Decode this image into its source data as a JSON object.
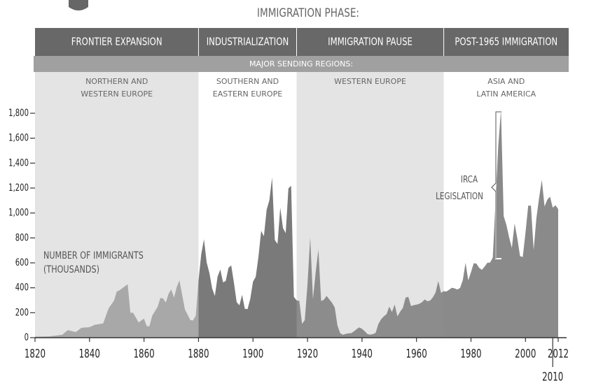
{
  "chart_data": {
    "type": "area",
    "title": "IMMIGRATION PHASE:",
    "subtitle": "MAJOR SENDING REGIONS:",
    "y_label": [
      "NUMBER OF IMMIGRANTS",
      "(THOUSANDS)"
    ],
    "annotation": [
      "IRCA",
      "LEGISLATION"
    ],
    "phases": [
      {
        "name": "FRONTIER EXPANSION",
        "region": [
          "NORTHERN AND",
          "WESTERN EUROPE"
        ],
        "start": 1820,
        "end": 1880,
        "bg": "#e4e4e4",
        "color": "#a8a8a8"
      },
      {
        "name": "INDUSTRIALIZATION",
        "region": [
          "SOUTHERN AND",
          "EASTERN EUROPE"
        ],
        "start": 1880,
        "end": 1916,
        "bg": "#ffffff",
        "color": "#7a7a7a"
      },
      {
        "name": "IMMIGRATION PAUSE",
        "region": [
          "WESTERN EUROPE"
        ],
        "start": 1916,
        "end": 1970,
        "bg": "#e4e4e4",
        "color": "#8c8c8c"
      },
      {
        "name": "POST-1965 IMMIGRATION",
        "region": [
          "ASIA AND",
          "LATIN AMERICA"
        ],
        "start": 1970,
        "end": 2016,
        "bg": "#ffffff",
        "color": "#8a8a8a"
      }
    ],
    "x": [
      1820,
      1825,
      1830,
      1832,
      1835,
      1837,
      1840,
      1842,
      1845,
      1847,
      1849,
      1850,
      1851,
      1854,
      1855,
      1856,
      1858,
      1860,
      1861,
      1862,
      1863,
      1865,
      1866,
      1867,
      1868,
      1869,
      1870,
      1871,
      1872,
      1873,
      1875,
      1877,
      1878,
      1879,
      1880,
      1881,
      1882,
      1883,
      1884,
      1885,
      1886,
      1887,
      1888,
      1889,
      1890,
      1891,
      1892,
      1893,
      1894,
      1895,
      1896,
      1897,
      1898,
      1899,
      1900,
      1901,
      1902,
      1903,
      1904,
      1905,
      1906,
      1907,
      1908,
      1909,
      1910,
      1911,
      1912,
      1913,
      1914,
      1915,
      1916,
      1917,
      1918,
      1919,
      1920,
      1921,
      1922,
      1923,
      1924,
      1925,
      1926,
      1927,
      1928,
      1929,
      1930,
      1931,
      1932,
      1933,
      1934,
      1935,
      1936,
      1937,
      1938,
      1939,
      1940,
      1941,
      1942,
      1943,
      1944,
      1945,
      1946,
      1947,
      1948,
      1949,
      1950,
      1951,
      1952,
      1953,
      1954,
      1955,
      1956,
      1957,
      1958,
      1959,
      1960,
      1961,
      1962,
      1963,
      1964,
      1965,
      1966,
      1967,
      1968,
      1969,
      1970,
      1971,
      1972,
      1973,
      1974,
      1975,
      1976,
      1977,
      1978,
      1979,
      1980,
      1981,
      1982,
      1983,
      1984,
      1985,
      1986,
      1987,
      1988,
      1989,
      1990,
      1991,
      1992,
      1993,
      1994,
      1995,
      1996,
      1997,
      1998,
      1999,
      2000,
      2001,
      2002,
      2003,
      2004,
      2005,
      2006,
      2007,
      2008,
      2009,
      2010,
      2011,
      2012
    ],
    "values": [
      8,
      10,
      23,
      60,
      45,
      79,
      84,
      104,
      114,
      235,
      297,
      370,
      380,
      428,
      200,
      200,
      123,
      153,
      92,
      92,
      176,
      248,
      318,
      315,
      282,
      352,
      387,
      321,
      404,
      460,
      227,
      141,
      138,
      177,
      457,
      669,
      789,
      603,
      519,
      395,
      334,
      490,
      547,
      444,
      455,
      560,
      580,
      440,
      285,
      259,
      343,
      231,
      229,
      312,
      449,
      488,
      649,
      857,
      813,
      1026,
      1101,
      1285,
      783,
      752,
      1042,
      879,
      838,
      1198,
      1218,
      327,
      299,
      295,
      111,
      141,
      430,
      805,
      310,
      523,
      707,
      294,
      304,
      335,
      307,
      280,
      242,
      97,
      36,
      23,
      30,
      35,
      36,
      50,
      68,
      83,
      71,
      52,
      29,
      24,
      29,
      38,
      109,
      147,
      171,
      188,
      249,
      206,
      266,
      170,
      208,
      238,
      322,
      327,
      253,
      261,
      265,
      271,
      284,
      306,
      292,
      297,
      323,
      362,
      454,
      359,
      373,
      370,
      385,
      400,
      395,
      386,
      399,
      462,
      601,
      460,
      525,
      597,
      594,
      560,
      544,
      570,
      601,
      602,
      643,
      1091,
      1536,
      1827,
      974,
      904,
      804,
      720,
      916,
      798,
      654,
      647,
      841,
      1059,
      1059,
      704,
      958,
      1122,
      1266,
      1052,
      1107,
      1131,
      1043,
      1062,
      1031
    ],
    "xlim": [
      1820,
      2012
    ],
    "ylim": [
      0,
      1800
    ],
    "xticks": [
      1820,
      1840,
      1860,
      1880,
      1900,
      1920,
      1940,
      1960,
      1980,
      2000,
      2010,
      2012
    ],
    "yticks": [
      0,
      200,
      400,
      600,
      800,
      {
        "value": 1000,
        "label": "1,000"
      },
      {
        "value": 1200,
        "label": "1,200"
      },
      {
        "value": 1400,
        "label": "1,400"
      },
      {
        "value": 1600,
        "label": "1,600"
      },
      {
        "value": 1800,
        "label": "1,800"
      }
    ]
  }
}
